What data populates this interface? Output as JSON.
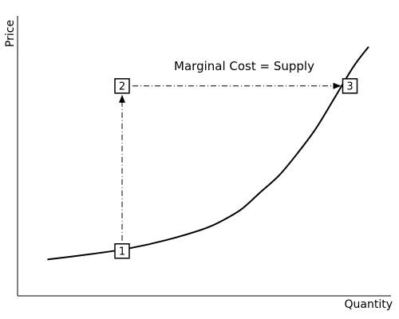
{
  "chart_data": {
    "type": "line",
    "title": "",
    "xlabel": "Quantity",
    "ylabel": "Price",
    "xlim": [
      0,
      10
    ],
    "ylim": [
      0,
      10
    ],
    "grid": false,
    "legend": "none",
    "series": [
      {
        "name": "Marginal Cost = Supply",
        "x": [
          0.8,
          2,
          3,
          4,
          5,
          5.5,
          6,
          6.5,
          7,
          7.5,
          8,
          8.5,
          9,
          9.4
        ],
        "y": [
          1.3,
          1.5,
          1.7,
          2.0,
          2.4,
          2.7,
          3.1,
          3.7,
          4.3,
          5.1,
          6.0,
          7.1,
          8.2,
          8.9
        ]
      }
    ],
    "annotations": [
      {
        "label": "1",
        "x": 2.8,
        "y": 1.6
      },
      {
        "label": "2",
        "x": 2.8,
        "y": 7.5
      },
      {
        "label": "3",
        "x": 8.9,
        "y": 7.5
      }
    ],
    "arrows": [
      {
        "from": "1",
        "to": "2"
      },
      {
        "from": "2",
        "to": "3"
      }
    ],
    "colors": {
      "line": "#000000",
      "background": "#ffffff"
    }
  }
}
